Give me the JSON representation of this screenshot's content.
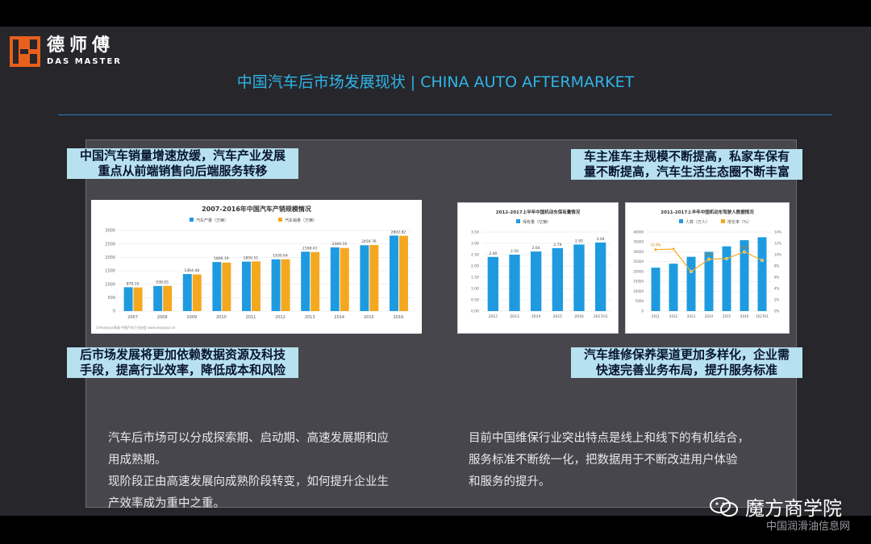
{
  "logo": {
    "cn": "德师傅",
    "en": "DAS MASTER"
  },
  "title": "中国汽车后市场发展现状 | CHINA AUTO AFTERMARKET",
  "callouts": {
    "top_left": [
      "中国汽车销量增速放缓，汽车产业发展",
      "重点从前端销售向后端服务转移"
    ],
    "top_right": [
      "车主准车主规模不断提高，私家车保有",
      "量不断提高，汽车生活生态圈不断丰富"
    ],
    "bottom_left": [
      "后市场发展将更加依赖数据资源及科技",
      "手段，提高行业效率，降低成本和风险"
    ],
    "bottom_right": [
      "汽车维修保养渠道更加多样化，企业需",
      "快速完善业务布局，提升服务标准"
    ]
  },
  "body": {
    "left": [
      "汽车后市场可以分成探索期、启动期、高速发展期和应",
      "用成熟期。",
      "现阶段正由高速发展向成熟阶段转变，如何提升企业生",
      "产效率成为重中之重。"
    ],
    "right": [
      "目前中国维保行业突出特点是线上和线下的有机结合，",
      "服务标准不断统一化，把数据用于不断改进用户体验",
      "和服务的提升。"
    ]
  },
  "watermark": {
    "brand": "魔方商学院",
    "site": "中国润滑油信息网"
  },
  "colors": {
    "accent": "#30b4e6",
    "callout_bg": "#b8e1ef",
    "bar_blue": "#1e9be0",
    "bar_orange": "#f4a81f",
    "brand_orange": "#e8601c"
  },
  "chart_data": [
    {
      "type": "bar",
      "title": "2007-2016年中国汽车产销规模情况",
      "source": "©Analysys易观 中国汽车工业协会 www.analysys.cn",
      "categories": [
        "2007",
        "2008",
        "2009",
        "2010",
        "2011",
        "2012",
        "2013",
        "2014",
        "2015",
        "2016"
      ],
      "series": [
        {
          "name": "汽车产量（万辆）",
          "values": [
            888.24,
            934.51,
            1379.1,
            1826.47,
            1841.89,
            1927.18,
            2211.68,
            2372.29,
            2450.33,
            2811.88
          ]
        },
        {
          "name": "汽车销量（万辆）",
          "values": [
            879.15,
            938.05,
            1364.48,
            1806.19,
            1850.51,
            1930.64,
            2198.41,
            2349.19,
            2459.76,
            2802.82
          ]
        }
      ],
      "data_labels": [
        "879.15",
        "938.05",
        "1364.48",
        "1806.19",
        "1850.51",
        "1930.64",
        "2198.41",
        "2349.19",
        "2459.76",
        "2802.82"
      ],
      "ylim": [
        0,
        3000
      ],
      "yticks": [
        "0",
        "500",
        "1000",
        "1500",
        "2000",
        "2500",
        "3000"
      ]
    },
    {
      "type": "bar",
      "title": "2012-2017上半年中国机动车保有量情况",
      "categories": [
        "2012",
        "2013",
        "2014",
        "2015",
        "2016",
        "2017H1"
      ],
      "series": [
        {
          "name": "保有量（亿辆）",
          "values": [
            2.4,
            2.5,
            2.64,
            2.79,
            2.95,
            3.04
          ]
        }
      ],
      "data_labels": [
        "2.40",
        "2.50",
        "2.64",
        "2.79",
        "2.95",
        "3.04"
      ],
      "ylim": [
        0,
        3.5
      ],
      "yticks": [
        "0.00",
        "0.50",
        "1.00",
        "1.50",
        "2.00",
        "2.50",
        "3.00",
        "3.50"
      ]
    },
    {
      "type": "bar",
      "title": "2011-2017上半年中国机动车驾驶人数据情况",
      "categories": [
        "2011",
        "2012",
        "2013",
        "2014",
        "2015",
        "2016",
        "2017H1"
      ],
      "series": [
        {
          "name": "人数（万人）",
          "values": [
            22000,
            24000,
            27500,
            30000,
            32800,
            35900,
            37400
          ]
        },
        {
          "name": "增长率（%）",
          "values": [
            10.9,
            11.0,
            7.0,
            9.2,
            9.3,
            10.5,
            9.0
          ]
        }
      ],
      "data_labels": [
        "10.9%",
        "",
        "",
        "9.2%",
        "",
        "10.5%",
        ""
      ],
      "ylim": [
        0,
        40000
      ],
      "yticks": [
        "0",
        "5000",
        "10000",
        "15000",
        "20000",
        "25000",
        "30000",
        "35000",
        "40000"
      ],
      "y2ticks": [
        "0%",
        "2%",
        "4%",
        "6%",
        "8%",
        "10%",
        "12%",
        "14%"
      ]
    }
  ]
}
